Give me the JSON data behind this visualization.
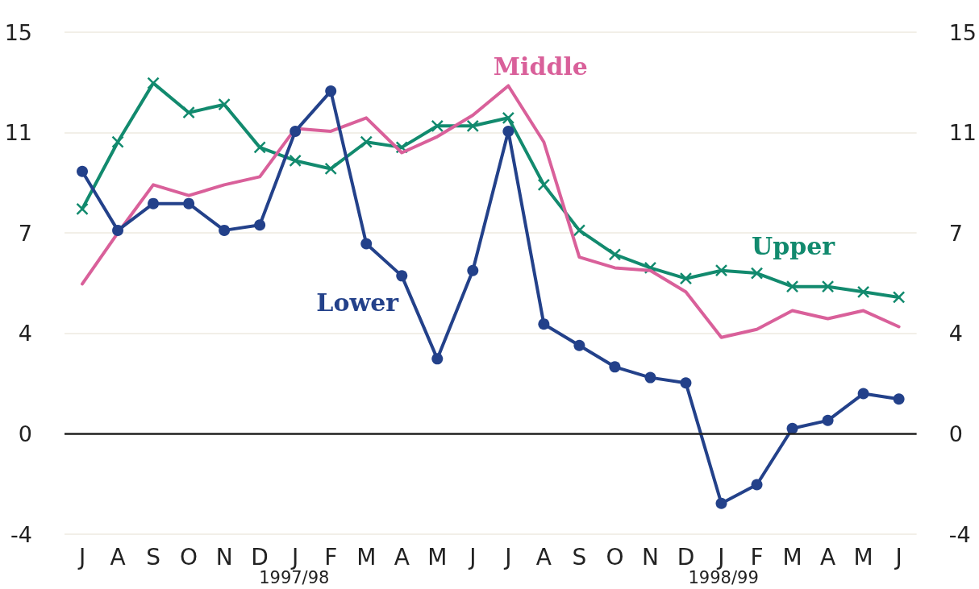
{
  "chart_data": {
    "type": "line",
    "categories": [
      "J",
      "A",
      "S",
      "O",
      "N",
      "D",
      "J",
      "F",
      "M",
      "A",
      "M",
      "J",
      "J",
      "A",
      "S",
      "O",
      "N",
      "D",
      "J",
      "F",
      "M",
      "A",
      "M",
      "J"
    ],
    "series": [
      {
        "name": "Lower",
        "color": "#23418a",
        "marker": "circle",
        "values": [
          9.8,
          7.6,
          8.6,
          8.6,
          7.6,
          7.8,
          11.3,
          12.8,
          7.1,
          5.9,
          2.8,
          6.1,
          11.3,
          4.1,
          3.3,
          2.5,
          2.1,
          1.9,
          -2.6,
          -1.9,
          0.2,
          0.5,
          1.5,
          1.3
        ]
      },
      {
        "name": "Middle",
        "color": "#d9609a",
        "marker": "none",
        "values": [
          5.6,
          7.5,
          9.3,
          8.9,
          9.3,
          9.6,
          11.4,
          11.3,
          11.8,
          10.5,
          11.1,
          11.9,
          13.0,
          10.9,
          6.6,
          6.2,
          6.1,
          5.3,
          3.6,
          3.9,
          4.6,
          4.3,
          4.6,
          4.0
        ]
      },
      {
        "name": "Upper",
        "color": "#128a6e",
        "marker": "cross",
        "values": [
          8.4,
          10.9,
          13.1,
          12.0,
          12.3,
          10.7,
          10.2,
          9.9,
          10.9,
          10.7,
          11.5,
          11.5,
          11.8,
          9.3,
          7.6,
          6.7,
          6.2,
          5.8,
          6.1,
          6.0,
          5.5,
          5.5,
          5.3,
          5.1
        ]
      }
    ],
    "ylim": [
      -3.75,
      15
    ],
    "yticks": [
      {
        "value": -3.75,
        "label": "-4"
      },
      0,
      {
        "value": 3.75,
        "label": "4"
      },
      {
        "value": 7.5,
        "label": "7"
      },
      {
        "value": 11.25,
        "label": "11"
      },
      15
    ],
    "y2lim": [
      -3.75,
      15
    ],
    "y2ticks": [
      {
        "value": -3.75,
        "label": "-4"
      },
      0,
      {
        "value": 3.75,
        "label": "4"
      },
      {
        "value": 7.5,
        "label": "7"
      },
      {
        "value": 11.25,
        "label": "11"
      },
      15
    ],
    "ref_lines": [
      {
        "axis": "y",
        "value": 0,
        "color": "#222222"
      }
    ],
    "annotations": [
      "1997/98",
      "1998/99"
    ],
    "grid": "y",
    "legend": false,
    "line_style": "solid"
  }
}
